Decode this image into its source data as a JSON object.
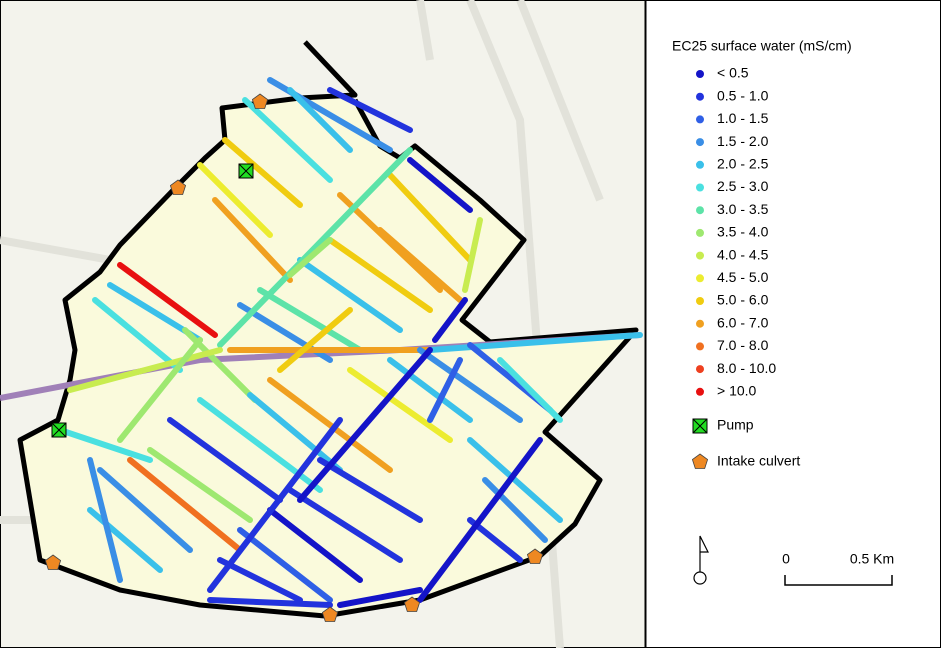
{
  "legend": {
    "title": "EC25 surface water (mS/cm)",
    "classes": [
      {
        "label": "< 0.5",
        "color": "#1414c8"
      },
      {
        "label": "0.5 - 1.0",
        "color": "#2233dd"
      },
      {
        "label": "1.0 - 1.5",
        "color": "#2f5fe6"
      },
      {
        "label": "1.5 - 2.0",
        "color": "#3a8ee6"
      },
      {
        "label": "2.0 - 2.5",
        "color": "#3ac0ea"
      },
      {
        "label": "2.5 - 3.0",
        "color": "#4ae0e0"
      },
      {
        "label": "3.0 - 3.5",
        "color": "#5de3a8"
      },
      {
        "label": "3.5 - 4.0",
        "color": "#9ee870"
      },
      {
        "label": "4.0 - 4.5",
        "color": "#c8ec50"
      },
      {
        "label": "4.5 - 5.0",
        "color": "#ecec30"
      },
      {
        "label": "5.0 - 6.0",
        "color": "#f0cc10"
      },
      {
        "label": "6.0 - 7.0",
        "color": "#f0a020"
      },
      {
        "label": "7.0 - 8.0",
        "color": "#f07020"
      },
      {
        "label": "8.0 - 10.0",
        "color": "#ee4020"
      },
      {
        "label": "> 10.0",
        "color": "#e81010"
      }
    ],
    "symbols": [
      {
        "label": "Pump"
      },
      {
        "label": "Intake culvert"
      }
    ]
  },
  "scale_bar": {
    "labels": [
      "0",
      "0.5 Km"
    ]
  }
}
